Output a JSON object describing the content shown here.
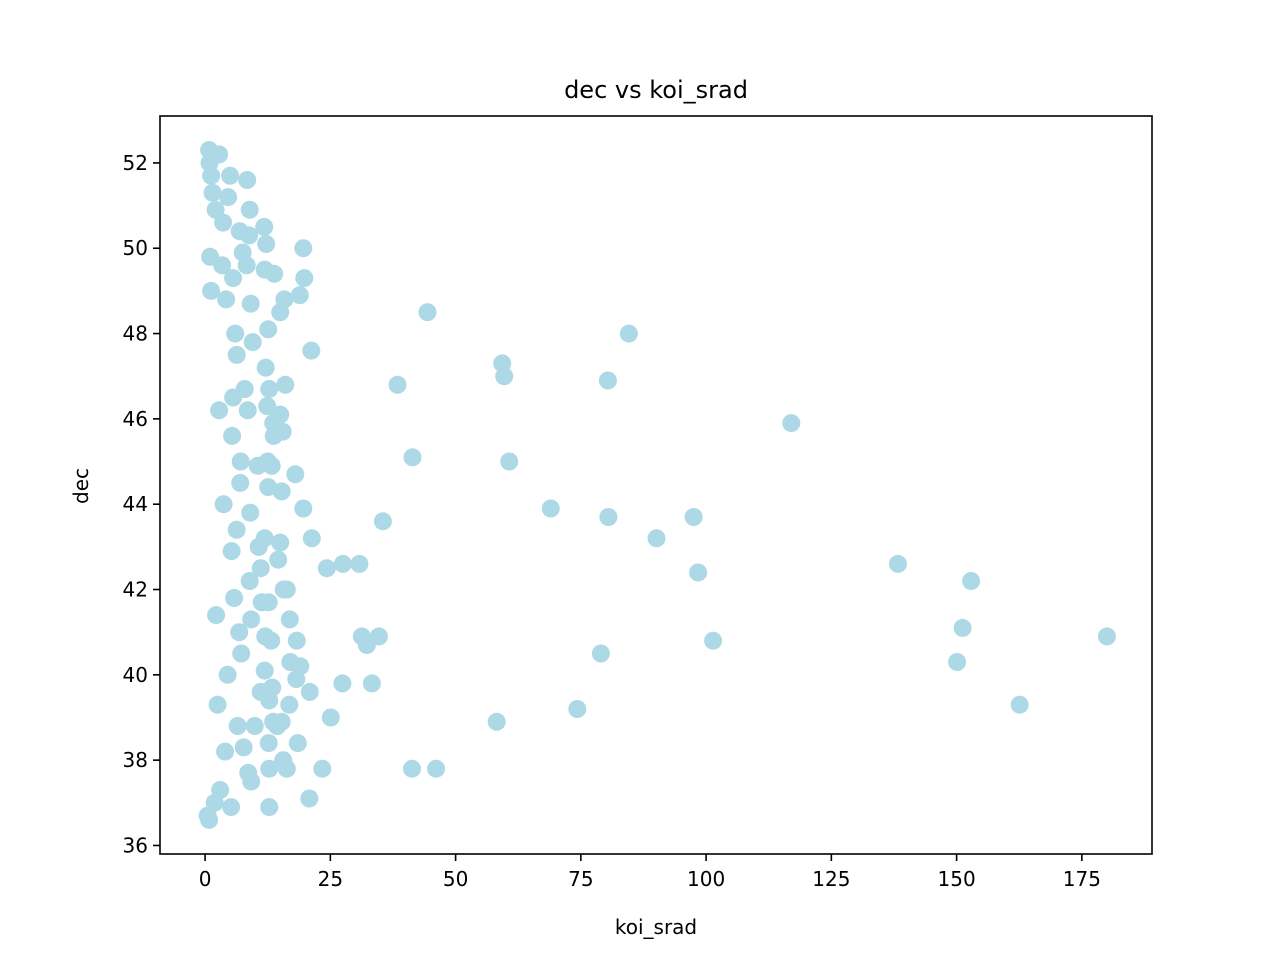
{
  "chart_data": {
    "type": "scatter",
    "title": "dec vs koi_srad",
    "xlabel": "koi_srad",
    "ylabel": "dec",
    "xlim": [
      -9,
      189
    ],
    "ylim": [
      35.8,
      53.1
    ],
    "x_ticks": [
      0,
      25,
      50,
      75,
      100,
      125,
      150,
      175
    ],
    "y_ticks": [
      36,
      38,
      40,
      42,
      44,
      46,
      48,
      50,
      52
    ],
    "grid": false,
    "legend": "none",
    "marker_color": "#add8e6",
    "points": [
      [
        0.8,
        52.3
      ],
      [
        0.9,
        52.0
      ],
      [
        1.2,
        51.7
      ],
      [
        2.8,
        52.2
      ],
      [
        5.0,
        51.7
      ],
      [
        8.4,
        51.6
      ],
      [
        1.5,
        51.3
      ],
      [
        4.6,
        51.2
      ],
      [
        2.1,
        50.9
      ],
      [
        8.9,
        50.9
      ],
      [
        11.8,
        50.5
      ],
      [
        6.9,
        50.4
      ],
      [
        8.8,
        50.3
      ],
      [
        12.2,
        50.1
      ],
      [
        19.6,
        50.0
      ],
      [
        1.0,
        49.8
      ],
      [
        3.4,
        49.6
      ],
      [
        8.3,
        49.6
      ],
      [
        11.9,
        49.5
      ],
      [
        13.8,
        49.4
      ],
      [
        19.8,
        49.3
      ],
      [
        5.6,
        49.3
      ],
      [
        1.2,
        49.0
      ],
      [
        15.8,
        48.8
      ],
      [
        18.9,
        48.9
      ],
      [
        9.1,
        48.7
      ],
      [
        44.4,
        48.5
      ],
      [
        15.0,
        48.5
      ],
      [
        84.6,
        48.0
      ],
      [
        12.6,
        48.1
      ],
      [
        6.0,
        48.0
      ],
      [
        9.5,
        47.8
      ],
      [
        21.2,
        47.6
      ],
      [
        59.3,
        47.3
      ],
      [
        12.1,
        47.2
      ],
      [
        59.7,
        47.0
      ],
      [
        80.4,
        46.9
      ],
      [
        38.4,
        46.8
      ],
      [
        16.0,
        46.8
      ],
      [
        12.8,
        46.7
      ],
      [
        7.9,
        46.7
      ],
      [
        117.0,
        45.9
      ],
      [
        15.0,
        46.1
      ],
      [
        8.5,
        46.2
      ],
      [
        12.4,
        46.3
      ],
      [
        13.6,
        45.9
      ],
      [
        15.5,
        45.7
      ],
      [
        13.7,
        45.6
      ],
      [
        5.4,
        45.6
      ],
      [
        41.4,
        45.1
      ],
      [
        60.7,
        45.0
      ],
      [
        12.5,
        45.0
      ],
      [
        10.5,
        44.9
      ],
      [
        13.3,
        44.9
      ],
      [
        7.1,
        45.0
      ],
      [
        18.0,
        44.7
      ],
      [
        15.3,
        44.3
      ],
      [
        12.6,
        44.4
      ],
      [
        19.6,
        43.9
      ],
      [
        69.0,
        43.9
      ],
      [
        80.5,
        43.7
      ],
      [
        97.5,
        43.7
      ],
      [
        35.5,
        43.6
      ],
      [
        9.0,
        43.8
      ],
      [
        6.3,
        43.4
      ],
      [
        90.1,
        43.2
      ],
      [
        21.3,
        43.2
      ],
      [
        11.9,
        43.2
      ],
      [
        15.0,
        43.1
      ],
      [
        10.7,
        43.0
      ],
      [
        14.6,
        42.7
      ],
      [
        27.5,
        42.6
      ],
      [
        30.8,
        42.6
      ],
      [
        24.3,
        42.5
      ],
      [
        11.1,
        42.5
      ],
      [
        98.4,
        42.4
      ],
      [
        138.3,
        42.6
      ],
      [
        152.9,
        42.2
      ],
      [
        8.9,
        42.2
      ],
      [
        15.7,
        42.0
      ],
      [
        16.3,
        42.0
      ],
      [
        5.8,
        41.8
      ],
      [
        12.7,
        41.7
      ],
      [
        11.3,
        41.7
      ],
      [
        16.9,
        41.3
      ],
      [
        9.2,
        41.3
      ],
      [
        151.2,
        41.1
      ],
      [
        180.0,
        40.9
      ],
      [
        31.3,
        40.9
      ],
      [
        34.7,
        40.9
      ],
      [
        101.4,
        40.8
      ],
      [
        12.0,
        40.9
      ],
      [
        13.2,
        40.8
      ],
      [
        18.3,
        40.8
      ],
      [
        32.3,
        40.7
      ],
      [
        79.0,
        40.5
      ],
      [
        7.2,
        40.5
      ],
      [
        17.0,
        40.3
      ],
      [
        19.0,
        40.2
      ],
      [
        11.9,
        40.1
      ],
      [
        150.1,
        40.3
      ],
      [
        18.2,
        39.9
      ],
      [
        27.4,
        39.8
      ],
      [
        33.3,
        39.8
      ],
      [
        13.4,
        39.7
      ],
      [
        20.9,
        39.6
      ],
      [
        11.1,
        39.6
      ],
      [
        12.8,
        39.4
      ],
      [
        16.8,
        39.3
      ],
      [
        162.6,
        39.3
      ],
      [
        74.3,
        39.2
      ],
      [
        13.6,
        38.9
      ],
      [
        15.3,
        38.9
      ],
      [
        25.1,
        39.0
      ],
      [
        58.2,
        38.9
      ],
      [
        9.9,
        38.8
      ],
      [
        14.4,
        38.8
      ],
      [
        12.7,
        38.4
      ],
      [
        18.5,
        38.4
      ],
      [
        7.7,
        38.3
      ],
      [
        15.6,
        38.0
      ],
      [
        16.3,
        37.8
      ],
      [
        23.4,
        37.8
      ],
      [
        12.8,
        37.8
      ],
      [
        41.3,
        37.8
      ],
      [
        46.1,
        37.8
      ],
      [
        8.6,
        37.7
      ],
      [
        9.2,
        37.5
      ],
      [
        20.8,
        37.1
      ],
      [
        12.8,
        36.9
      ],
      [
        5.2,
        36.9
      ],
      [
        0.5,
        36.7
      ],
      [
        0.8,
        36.6
      ],
      [
        1.9,
        37.0
      ],
      [
        3.0,
        37.3
      ],
      [
        6.5,
        38.8
      ],
      [
        4.5,
        40.0
      ],
      [
        6.8,
        41.0
      ],
      [
        5.3,
        42.9
      ],
      [
        7.0,
        44.5
      ],
      [
        5.6,
        46.5
      ],
      [
        6.3,
        47.5
      ],
      [
        4.2,
        48.8
      ],
      [
        7.5,
        49.9
      ],
      [
        3.6,
        50.6
      ],
      [
        2.2,
        41.4
      ],
      [
        3.7,
        44.0
      ],
      [
        2.8,
        46.2
      ],
      [
        4.0,
        38.2
      ],
      [
        2.5,
        39.3
      ]
    ]
  }
}
